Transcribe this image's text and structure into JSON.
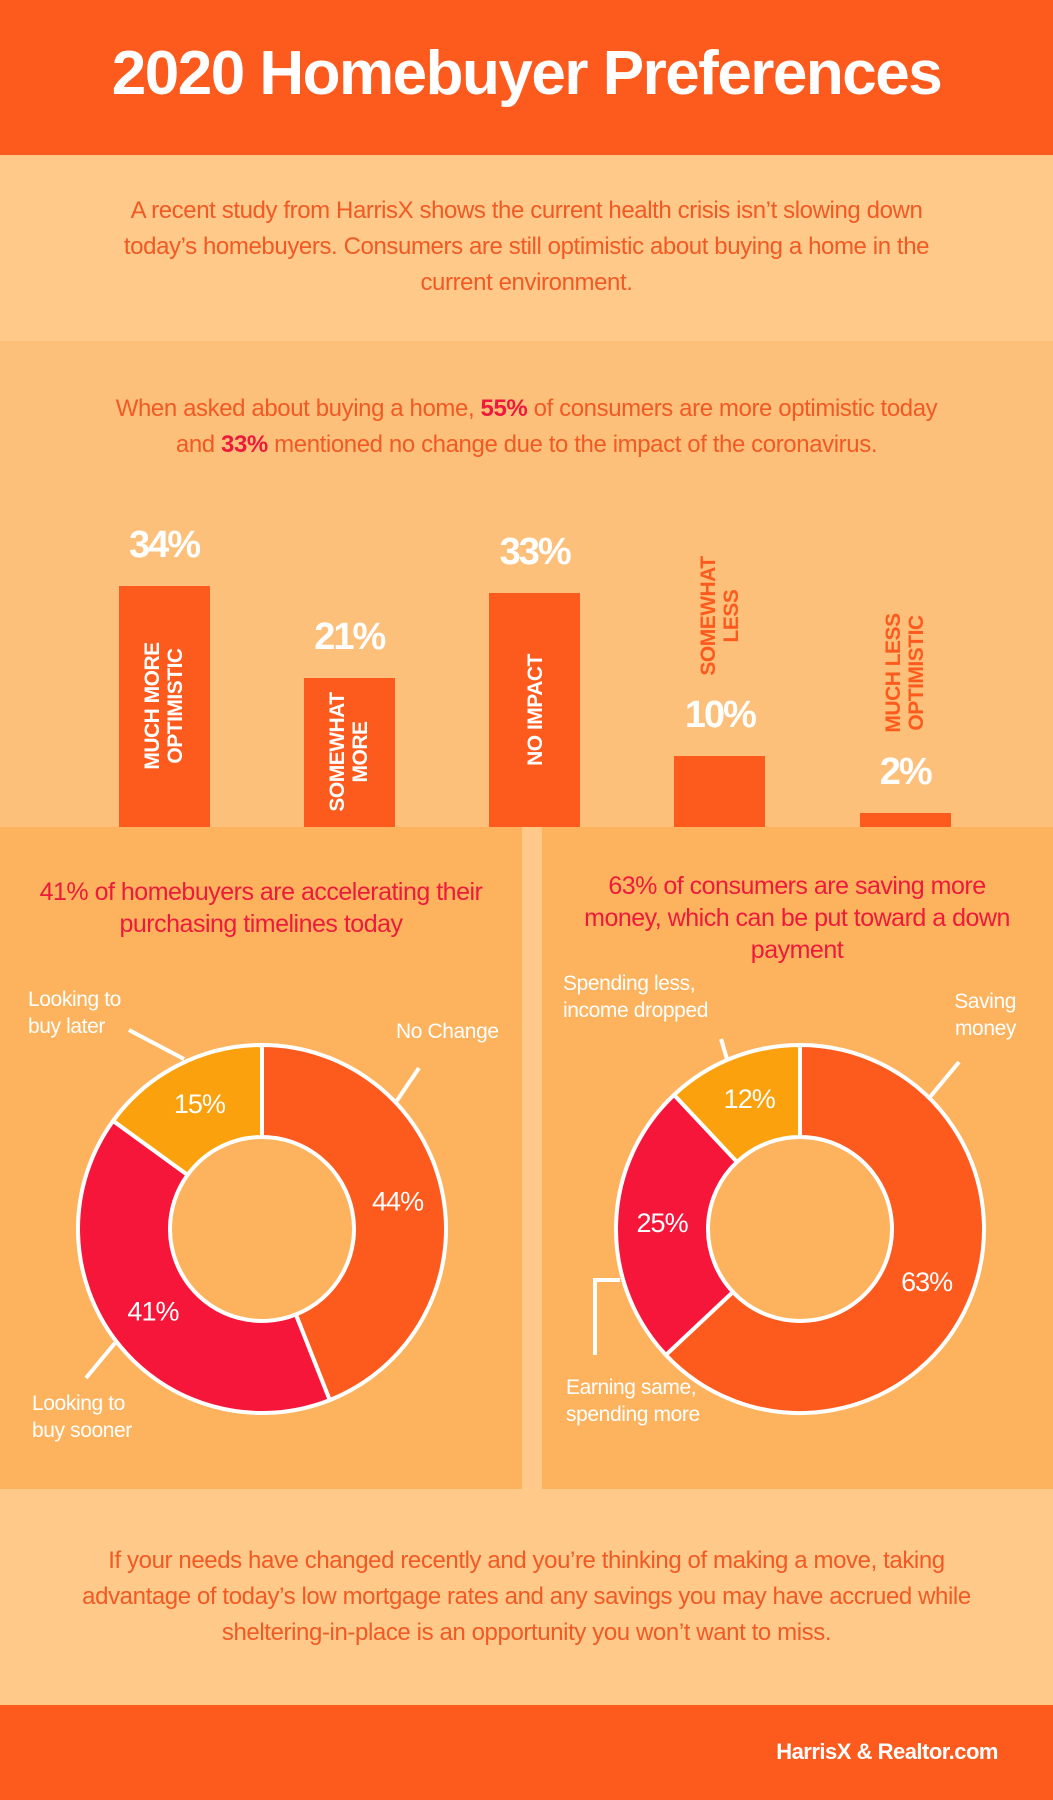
{
  "header": {
    "title": "2020 Homebuyer Preferences"
  },
  "intro": "A recent study from HarrisX shows the current health crisis isn’t slowing down today’s homebuyers. Consumers are still optimistic about buying a home in the current environment.",
  "summary": {
    "before": "When asked about buying a home,",
    "stat1": "55%",
    "middle": "of consumers are more optimistic today and",
    "stat2": "33%",
    "after": "mentioned no change due to the impact of the coronavirus."
  },
  "chart_data": [
    {
      "type": "bar",
      "categories": [
        "MUCH MORE OPTIMISTIC",
        "SOMEWHAT MORE",
        "NO IMPACT",
        "SOMEWHAT LESS",
        "MUCH LESS OPTIMISTIC"
      ],
      "values": [
        34,
        21,
        33,
        10,
        2
      ],
      "value_labels": [
        "34%",
        "21%",
        "33%",
        "10%",
        "2%"
      ],
      "color": "#fd5a1e"
    },
    {
      "type": "donut",
      "title": "41% of homebuyers are accelerating their purchasing timelines today",
      "categories": [
        "No Change",
        "Looking to buy sooner",
        "Looking to buy later"
      ],
      "values": [
        44,
        41,
        15
      ],
      "value_labels": [
        "44%",
        "41%",
        "15%"
      ],
      "colors": [
        "#fd5a1e",
        "#f5163a",
        "#fba10d"
      ]
    },
    {
      "type": "donut",
      "title": "63% of consumers are saving more money, which can be put toward a down payment",
      "categories": [
        "Saving money",
        "Earning same, spending more",
        "Spending less, income dropped"
      ],
      "values": [
        63,
        25,
        12
      ],
      "value_labels": [
        "63%",
        "25%",
        "12%"
      ],
      "colors": [
        "#fd5a1e",
        "#f5163a",
        "#fba10d"
      ]
    }
  ],
  "closing": "If your needs have changed recently and you’re thinking of making a move, taking advantage of today’s low mortgage rates and any savings you may have accrued while sheltering-in-place is an opportunity you won’t want to miss.",
  "footer": {
    "source": "HarrisX & Realtor.com"
  }
}
